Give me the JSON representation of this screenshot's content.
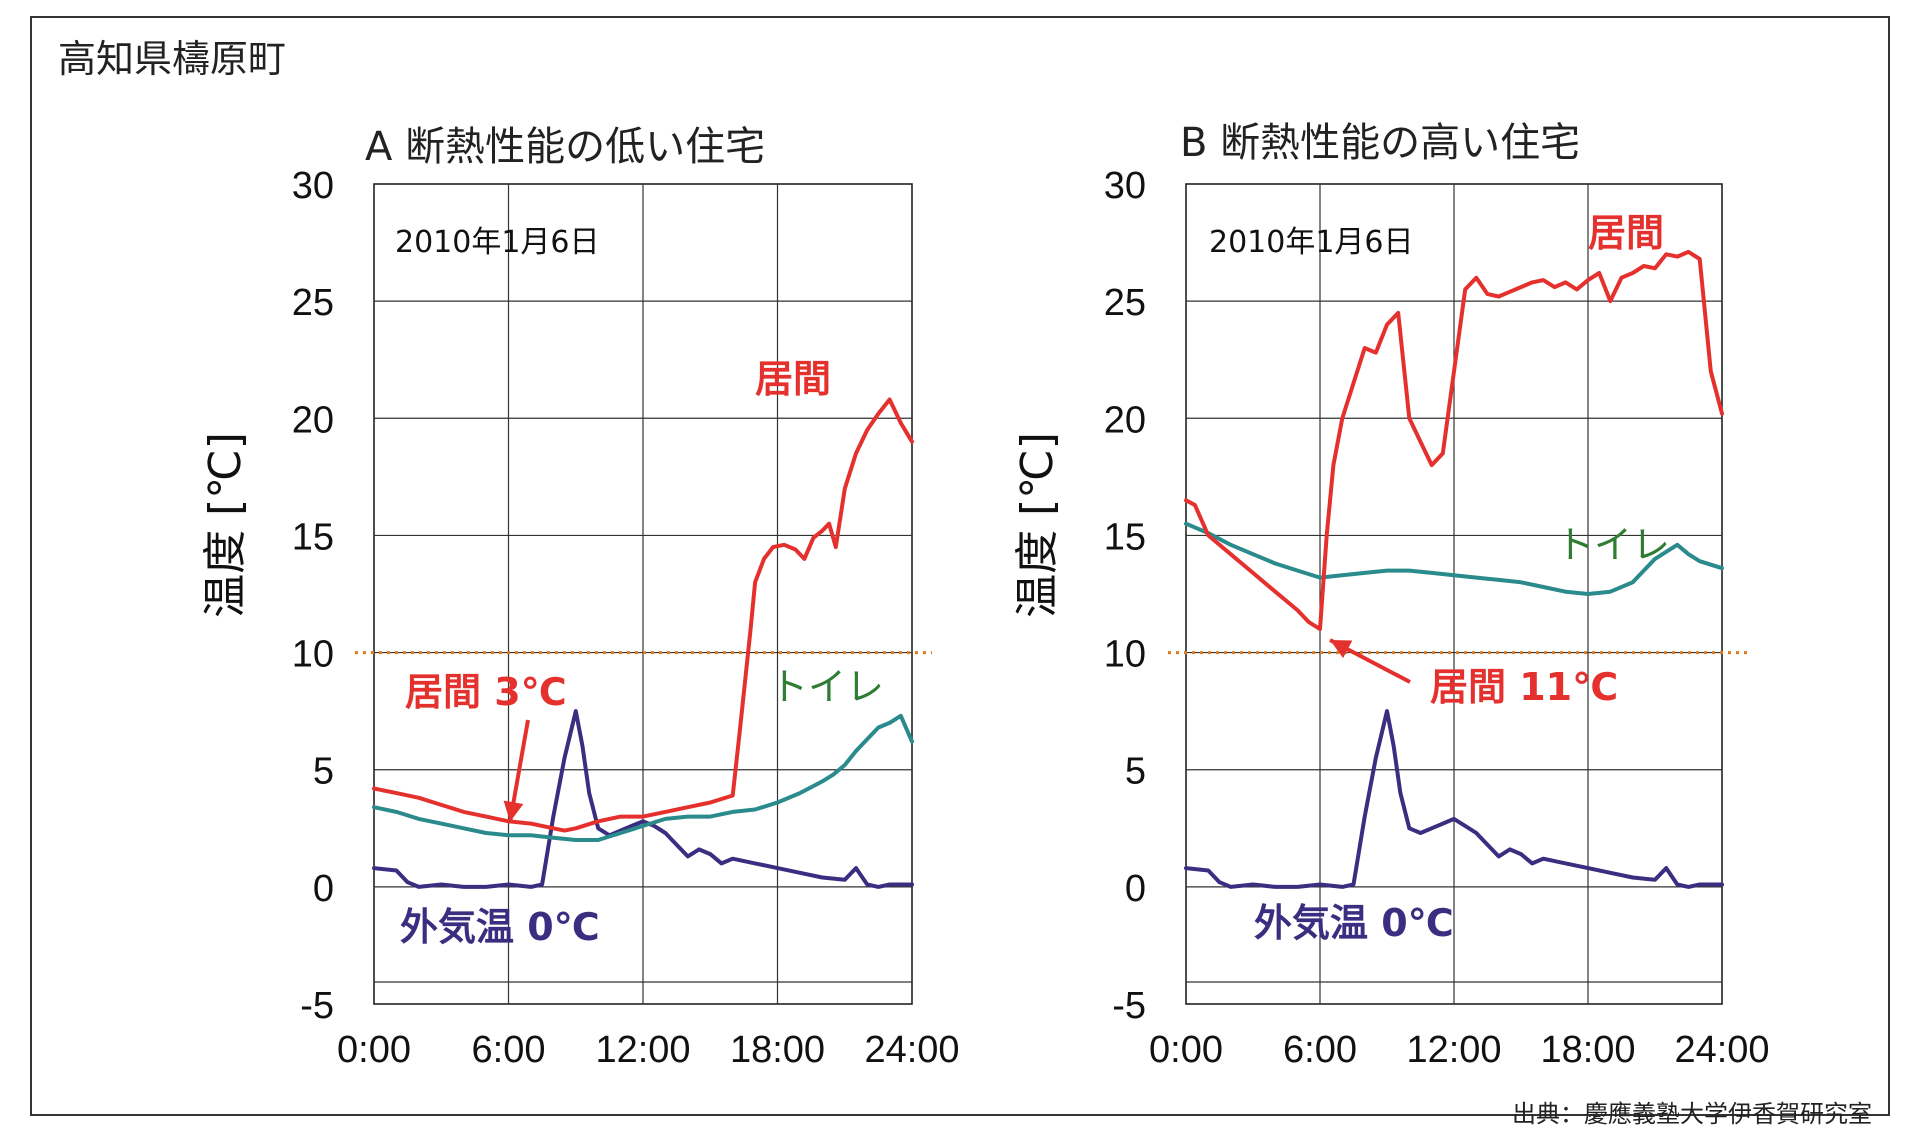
{
  "region": "高知県檮原町",
  "source": "出典：慶應義塾大学伊香賀研究室",
  "chart_data": [
    {
      "type": "line",
      "title": "A 断熱性能の低い住宅",
      "date_label": "2010年1月6日",
      "ylabel": "温度 [℃]",
      "xlabel": "",
      "ylim": [
        -5,
        30
      ],
      "xlim": [
        0,
        24
      ],
      "yticks": [
        "-5",
        "0",
        "5",
        "10",
        "15",
        "20",
        "25",
        "30"
      ],
      "xticks": [
        "0:00",
        "6:00",
        "12:00",
        "18:00",
        "24:00"
      ],
      "xtick_values": [
        0,
        6,
        12,
        18,
        24
      ],
      "grid": true,
      "reference_line": {
        "y": 10,
        "color": "#e07b1a",
        "style": "dotted"
      },
      "series": [
        {
          "name": "居間",
          "color": "#e5312e",
          "x": [
            0,
            1,
            2,
            3,
            4,
            5,
            6,
            7,
            8,
            8.5,
            9,
            10,
            11,
            12,
            13,
            14,
            15,
            16,
            16.3,
            16.8,
            17,
            17.4,
            17.8,
            18.3,
            18.8,
            19.2,
            19.6,
            20,
            20.3,
            20.6,
            21,
            21.5,
            22,
            22.5,
            23,
            23.5,
            24
          ],
          "y": [
            4.2,
            4.0,
            3.8,
            3.5,
            3.2,
            3.0,
            2.8,
            2.7,
            2.5,
            2.4,
            2.5,
            2.8,
            3.0,
            3.0,
            3.2,
            3.4,
            3.6,
            3.9,
            6.5,
            11.0,
            13.0,
            14.0,
            14.5,
            14.6,
            14.4,
            14.0,
            14.9,
            15.2,
            15.5,
            14.5,
            17.0,
            18.5,
            19.5,
            20.2,
            20.8,
            19.8,
            19.0
          ]
        },
        {
          "name": "トイレ",
          "color": "#2a8a8c",
          "x": [
            0,
            1,
            2,
            3,
            4,
            5,
            6,
            7,
            8,
            9,
            10,
            11,
            12,
            13,
            14,
            15,
            16,
            17,
            18,
            19,
            20,
            20.5,
            21,
            21.5,
            22,
            22.5,
            23,
            23.5,
            24
          ],
          "y": [
            3.4,
            3.2,
            2.9,
            2.7,
            2.5,
            2.3,
            2.2,
            2.2,
            2.1,
            2.0,
            2.0,
            2.3,
            2.6,
            2.9,
            3.0,
            3.0,
            3.2,
            3.3,
            3.6,
            4.0,
            4.5,
            4.8,
            5.2,
            5.8,
            6.3,
            6.8,
            7.0,
            7.3,
            6.2
          ]
        },
        {
          "name": "外気温",
          "color": "#3b2d80",
          "x": [
            0,
            1,
            1.5,
            2,
            3,
            4,
            5,
            6,
            7,
            7.5,
            8,
            8.5,
            9,
            9.3,
            9.6,
            10,
            10.5,
            11,
            11.5,
            12,
            12.5,
            13,
            13.5,
            14,
            14.5,
            15,
            15.5,
            16,
            17,
            18,
            19,
            20,
            21,
            21.5,
            22,
            22.5,
            23,
            24
          ],
          "y": [
            0.8,
            0.7,
            0.2,
            0.0,
            0.1,
            0.0,
            0.0,
            0.1,
            0.0,
            0.1,
            3.0,
            5.5,
            7.5,
            6.0,
            4.0,
            2.5,
            2.2,
            2.4,
            2.6,
            2.8,
            2.6,
            2.3,
            1.8,
            1.3,
            1.6,
            1.4,
            1.0,
            1.2,
            1.0,
            0.8,
            0.6,
            0.4,
            0.3,
            0.8,
            0.1,
            0.0,
            0.1,
            0.1
          ]
        }
      ],
      "labels": [
        {
          "text": "居間",
          "color": "#e5312e"
        },
        {
          "text": "トイレ",
          "color": "#2e7d32"
        },
        {
          "text": "外気温 0℃",
          "color": "#3b2d80"
        },
        {
          "text": "居間 3℃",
          "color": "#e5312e"
        }
      ]
    },
    {
      "type": "line",
      "title": "B 断熱性能の高い住宅",
      "date_label": "2010年1月6日",
      "ylabel": "温度 [℃]",
      "xlabel": "",
      "ylim": [
        -5,
        30
      ],
      "xlim": [
        0,
        24
      ],
      "yticks": [
        "-5",
        "0",
        "5",
        "10",
        "15",
        "20",
        "25",
        "30"
      ],
      "xticks": [
        "0:00",
        "6:00",
        "12:00",
        "18:00",
        "24:00"
      ],
      "xtick_values": [
        0,
        6,
        12,
        18,
        24
      ],
      "grid": true,
      "reference_line": {
        "y": 10,
        "color": "#e07b1a",
        "style": "dotted"
      },
      "series": [
        {
          "name": "居間",
          "color": "#e5312e",
          "x": [
            0,
            0.4,
            1,
            2,
            3,
            4,
            5,
            5.5,
            6,
            6.3,
            6.6,
            7,
            7.5,
            8,
            8.5,
            9,
            9.5,
            10,
            10.5,
            11,
            11.5,
            12,
            12.5,
            13,
            13.5,
            14,
            14.5,
            15,
            15.5,
            16,
            16.5,
            17,
            17.5,
            18,
            18.5,
            19,
            19.5,
            20,
            20.5,
            21,
            21.5,
            22,
            22.5,
            23,
            23.5,
            24
          ],
          "y": [
            16.5,
            16.3,
            15.0,
            14.2,
            13.4,
            12.6,
            11.8,
            11.3,
            11.0,
            15.0,
            18.0,
            20.0,
            21.5,
            23.0,
            22.8,
            24.0,
            24.5,
            20.0,
            19.0,
            18.0,
            18.5,
            22.0,
            25.5,
            26.0,
            25.3,
            25.2,
            25.4,
            25.6,
            25.8,
            25.9,
            25.6,
            25.8,
            25.5,
            25.9,
            26.2,
            25.0,
            26.0,
            26.2,
            26.5,
            26.4,
            27.0,
            26.9,
            27.1,
            26.8,
            22.0,
            20.2
          ]
        },
        {
          "name": "トイレ",
          "color": "#2a8a8c",
          "x": [
            0,
            1,
            2,
            3,
            4,
            5,
            6,
            7,
            8,
            9,
            10,
            11,
            12,
            13,
            14,
            15,
            16,
            17,
            18,
            19,
            20,
            20.5,
            21,
            21.5,
            22,
            22.5,
            23,
            24
          ],
          "y": [
            15.5,
            15.1,
            14.6,
            14.2,
            13.8,
            13.5,
            13.2,
            13.3,
            13.4,
            13.5,
            13.5,
            13.4,
            13.3,
            13.2,
            13.1,
            13.0,
            12.8,
            12.6,
            12.5,
            12.6,
            13.0,
            13.5,
            14.0,
            14.3,
            14.6,
            14.2,
            13.9,
            13.6
          ]
        },
        {
          "name": "外気温",
          "color": "#3b2d80",
          "x": [
            0,
            1,
            1.5,
            2,
            3,
            4,
            5,
            6,
            7,
            7.5,
            8,
            8.5,
            9,
            9.3,
            9.6,
            10,
            10.5,
            11,
            11.5,
            12,
            12.5,
            13,
            13.5,
            14,
            14.5,
            15,
            15.5,
            16,
            17,
            18,
            19,
            20,
            21,
            21.5,
            22,
            22.5,
            23,
            24
          ],
          "y": [
            0.8,
            0.7,
            0.2,
            0.0,
            0.1,
            0.0,
            0.0,
            0.1,
            0.0,
            0.1,
            3.0,
            5.5,
            7.5,
            6.0,
            4.0,
            2.5,
            2.3,
            2.5,
            2.7,
            2.9,
            2.6,
            2.3,
            1.8,
            1.3,
            1.6,
            1.4,
            1.0,
            1.2,
            1.0,
            0.8,
            0.6,
            0.4,
            0.3,
            0.8,
            0.1,
            0.0,
            0.1,
            0.1
          ]
        }
      ],
      "labels": [
        {
          "text": "居間",
          "color": "#e5312e"
        },
        {
          "text": "トイレ",
          "color": "#2e7d32"
        },
        {
          "text": "外気温 0℃",
          "color": "#3b2d80"
        },
        {
          "text": "居間 11℃",
          "color": "#e5312e"
        }
      ]
    }
  ]
}
